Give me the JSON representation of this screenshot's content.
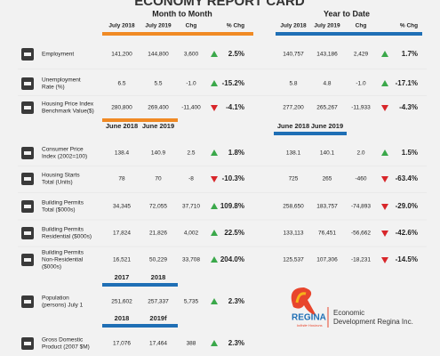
{
  "title": "ECONOMY REPORT CARD",
  "sections": {
    "month": "Month to Month",
    "ytd": "Year to Date"
  },
  "columns": {
    "month": [
      "July 2018",
      "July 2019",
      "Chg",
      "% Chg"
    ],
    "ytd": [
      "July 2018",
      "July 2019",
      "Chg",
      "% Chg"
    ]
  },
  "subheaders": [
    {
      "month": [
        "June 2018",
        "June 2019"
      ],
      "ytd": [
        "June 2018",
        "June 2019"
      ]
    },
    {
      "month": [
        "2017",
        "2018"
      ]
    },
    {
      "month": [
        "2018",
        "2019f"
      ]
    }
  ],
  "rows": [
    {
      "label": [
        "Employment"
      ],
      "month": [
        "141,200",
        "144,800",
        "3,600",
        "2.5%"
      ],
      "month_arrow": "up",
      "ytd": [
        "140,757",
        "143,186",
        "2,429",
        "1.7%"
      ],
      "ytd_arrow": "up"
    },
    {
      "label": [
        "Unemployment",
        "Rate (%)"
      ],
      "month": [
        "6.5",
        "5.5",
        "-1.0",
        "-15.2%"
      ],
      "month_arrow": "up",
      "ytd": [
        "5.8",
        "4.8",
        "-1.0",
        "-17.1%"
      ],
      "ytd_arrow": "up"
    },
    {
      "label": [
        "Housing Price Index",
        "Benchmark Value($)"
      ],
      "month": [
        "280,800",
        "269,400",
        "-11,400",
        "-4.1%"
      ],
      "month_arrow": "down",
      "ytd": [
        "277,200",
        "265,267",
        "-11,933",
        "-4.3%"
      ],
      "ytd_arrow": "down"
    },
    {
      "label": [
        "Consumer Price",
        "Index (2002=100)"
      ],
      "month": [
        "138.4",
        "140.9",
        "2.5",
        "1.8%"
      ],
      "month_arrow": "up",
      "ytd": [
        "138.1",
        "140.1",
        "2.0",
        "1.5%"
      ],
      "ytd_arrow": "up"
    },
    {
      "label": [
        "Housing Starts",
        "Total (Units)"
      ],
      "month": [
        "78",
        "70",
        "-8",
        "-10.3%"
      ],
      "month_arrow": "down",
      "ytd": [
        "725",
        "265",
        "-460",
        "-63.4%"
      ],
      "ytd_arrow": "down"
    },
    {
      "label": [
        "Building Permits",
        "Total ($000s)"
      ],
      "month": [
        "34,345",
        "72,055",
        "37,710",
        "109.8%"
      ],
      "month_arrow": "up",
      "ytd": [
        "258,650",
        "183,757",
        "-74,893",
        "-29.0%"
      ],
      "ytd_arrow": "down"
    },
    {
      "label": [
        "Building Permits",
        "Residential ($000s)"
      ],
      "month": [
        "17,824",
        "21,826",
        "4,002",
        "22.5%"
      ],
      "month_arrow": "up",
      "ytd": [
        "133,113",
        "76,451",
        "-56,662",
        "-42.6%"
      ],
      "ytd_arrow": "down"
    },
    {
      "label": [
        "Building Permits",
        "Non-Residential",
        "($000s)"
      ],
      "month": [
        "16,521",
        "50,229",
        "33,708",
        "204.0%"
      ],
      "month_arrow": "up",
      "ytd": [
        "125,537",
        "107,306",
        "-18,231",
        "-14.5%"
      ],
      "ytd_arrow": "down"
    },
    {
      "label": [
        "Population",
        "(persons) July 1"
      ],
      "month": [
        "251,602",
        "257,337",
        "5,735",
        "2.3%"
      ],
      "month_arrow": "up"
    },
    {
      "label": [
        "Gross Domestic",
        "Product (2007 $M)"
      ],
      "month": [
        "17,076",
        "17,464",
        "388",
        "2.3%"
      ],
      "month_arrow": "up"
    }
  ],
  "logo": {
    "name": "REGINA",
    "tagline": "Infinite Horizons",
    "org": [
      "Economic",
      "Development Regina Inc."
    ]
  }
}
